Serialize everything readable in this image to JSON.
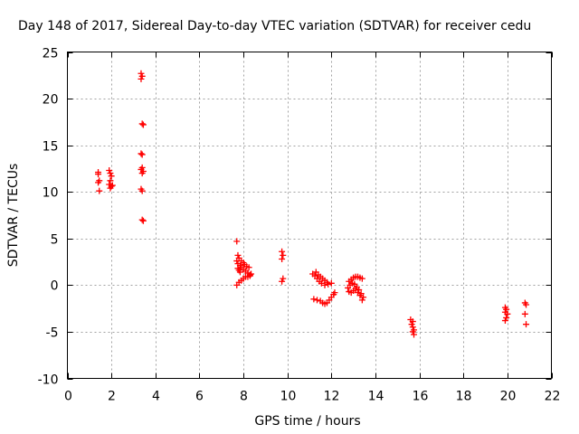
{
  "chart_data": {
    "type": "scatter",
    "title": "Day 148 of 2017, Sidereal Day-to-day VTEC variation (SDTVAR) for receiver cedu",
    "xlabel": "GPS time / hours",
    "ylabel": "SDTVAR / TECUs",
    "xlim": [
      0,
      22
    ],
    "ylim": [
      -10,
      25
    ],
    "xticks": [
      0,
      2,
      4,
      6,
      8,
      10,
      12,
      14,
      16,
      18,
      20,
      22
    ],
    "yticks": [
      -10,
      -5,
      0,
      5,
      10,
      15,
      20,
      25
    ],
    "grid": true,
    "marker": "plus",
    "color": "#ff0000",
    "points": [
      [
        1.4,
        12.1
      ],
      [
        1.4,
        11.9
      ],
      [
        1.45,
        11.2
      ],
      [
        1.4,
        11.0
      ],
      [
        1.45,
        10.1
      ],
      [
        1.9,
        12.3
      ],
      [
        1.95,
        12.0
      ],
      [
        2.0,
        11.7
      ],
      [
        1.95,
        11.2
      ],
      [
        1.9,
        10.8
      ],
      [
        2.0,
        10.6
      ],
      [
        1.95,
        10.4
      ],
      [
        2.05,
        10.7
      ],
      [
        3.35,
        22.7
      ],
      [
        3.4,
        22.4
      ],
      [
        3.35,
        22.1
      ],
      [
        3.4,
        17.3
      ],
      [
        3.45,
        17.2
      ],
      [
        3.35,
        14.1
      ],
      [
        3.4,
        14.0
      ],
      [
        3.4,
        12.6
      ],
      [
        3.35,
        12.4
      ],
      [
        3.45,
        12.2
      ],
      [
        3.4,
        12.0
      ],
      [
        3.35,
        10.3
      ],
      [
        3.4,
        10.1
      ],
      [
        3.4,
        7.0
      ],
      [
        3.45,
        6.9
      ],
      [
        7.7,
        4.7
      ],
      [
        7.75,
        3.2
      ],
      [
        7.8,
        2.9
      ],
      [
        7.7,
        2.6
      ],
      [
        7.75,
        2.3
      ],
      [
        7.85,
        2.1
      ],
      [
        7.9,
        1.9
      ],
      [
        8.0,
        1.7
      ],
      [
        8.1,
        1.5
      ],
      [
        8.2,
        1.3
      ],
      [
        8.3,
        1.1
      ],
      [
        7.75,
        1.8
      ],
      [
        7.8,
        1.6
      ],
      [
        7.85,
        1.4
      ],
      [
        7.9,
        2.6
      ],
      [
        8.0,
        2.4
      ],
      [
        8.05,
        2.2
      ],
      [
        8.15,
        2.0
      ],
      [
        8.25,
        1.9
      ],
      [
        7.7,
        0.0
      ],
      [
        7.8,
        0.3
      ],
      [
        7.9,
        0.5
      ],
      [
        8.0,
        0.7
      ],
      [
        8.1,
        0.9
      ],
      [
        8.2,
        0.9
      ],
      [
        8.3,
        1.0
      ],
      [
        8.35,
        1.2
      ],
      [
        9.75,
        3.6
      ],
      [
        9.8,
        3.2
      ],
      [
        9.75,
        2.8
      ],
      [
        9.8,
        0.7
      ],
      [
        9.75,
        0.4
      ],
      [
        11.15,
        1.2
      ],
      [
        11.25,
        1.0
      ],
      [
        11.35,
        0.7
      ],
      [
        11.45,
        0.4
      ],
      [
        11.55,
        0.2
      ],
      [
        11.7,
        0.0
      ],
      [
        11.85,
        0.1
      ],
      [
        12.0,
        0.2
      ],
      [
        11.3,
        1.4
      ],
      [
        11.4,
        1.1
      ],
      [
        11.5,
        0.9
      ],
      [
        11.6,
        0.7
      ],
      [
        11.7,
        0.5
      ],
      [
        11.8,
        0.3
      ],
      [
        11.2,
        -1.5
      ],
      [
        11.35,
        -1.6
      ],
      [
        11.5,
        -1.7
      ],
      [
        11.6,
        -1.9
      ],
      [
        11.7,
        -2.0
      ],
      [
        11.8,
        -1.9
      ],
      [
        11.9,
        -1.6
      ],
      [
        12.0,
        -1.3
      ],
      [
        12.1,
        -1.0
      ],
      [
        12.15,
        -0.8
      ],
      [
        12.8,
        0.4
      ],
      [
        12.9,
        0.6
      ],
      [
        13.0,
        0.8
      ],
      [
        13.1,
        0.9
      ],
      [
        13.2,
        0.9
      ],
      [
        13.3,
        0.8
      ],
      [
        13.4,
        0.7
      ],
      [
        12.75,
        -0.3
      ],
      [
        12.85,
        0.0
      ],
      [
        12.95,
        0.2
      ],
      [
        13.05,
        0.1
      ],
      [
        13.15,
        -0.2
      ],
      [
        13.25,
        -0.5
      ],
      [
        13.35,
        -0.9
      ],
      [
        13.45,
        -1.3
      ],
      [
        12.8,
        -0.7
      ],
      [
        12.9,
        -0.8
      ],
      [
        13.0,
        -0.6
      ],
      [
        13.1,
        -0.4
      ],
      [
        13.2,
        -0.8
      ],
      [
        13.3,
        -1.1
      ],
      [
        13.4,
        -1.6
      ],
      [
        15.6,
        -3.7
      ],
      [
        15.7,
        -3.9
      ],
      [
        15.65,
        -4.2
      ],
      [
        15.7,
        -4.5
      ],
      [
        15.75,
        -4.8
      ],
      [
        15.7,
        -5.0
      ],
      [
        15.75,
        -5.3
      ],
      [
        19.9,
        -2.4
      ],
      [
        19.95,
        -2.6
      ],
      [
        19.9,
        -2.9
      ],
      [
        20.0,
        -3.1
      ],
      [
        19.95,
        -3.5
      ],
      [
        19.9,
        -3.8
      ],
      [
        20.8,
        -1.9
      ],
      [
        20.85,
        -2.1
      ],
      [
        20.8,
        -3.1
      ],
      [
        20.85,
        -4.2
      ]
    ]
  }
}
